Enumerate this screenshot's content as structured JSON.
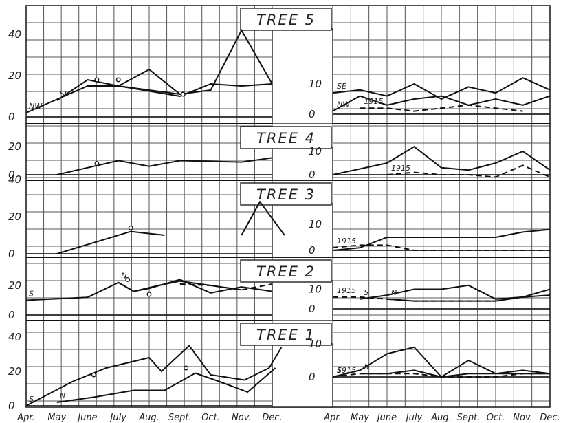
{
  "chart_data": {
    "type": "line",
    "x_labels": [
      "Apr.",
      "May",
      "June",
      "July",
      "Aug.",
      "Sept.",
      "Oct.",
      "Nov.",
      "Dec.",
      "Apr.",
      "May",
      "June",
      "July",
      "Aug.",
      "Sept.",
      "Oct.",
      "Nov.",
      "Dec."
    ],
    "panels": [
      {
        "title": "TREE 5",
        "left_yticks": [
          "40",
          "20",
          "0"
        ],
        "right_yticks": [
          "10",
          "0"
        ],
        "left_series": [
          {
            "name": "SE",
            "style": "solid",
            "points": [
              [
                1,
                8
              ],
              [
                2,
                18
              ],
              [
                3,
                15
              ],
              [
                5,
                11
              ],
              [
                6,
                13
              ],
              [
                7,
                42
              ],
              [
                8,
                16
              ]
            ]
          },
          {
            "name": "NW",
            "style": "solid",
            "points": [
              [
                0,
                2
              ],
              [
                2,
                15
              ],
              [
                3,
                15
              ],
              [
                5,
                10
              ],
              [
                6,
                16
              ],
              [
                7,
                15
              ],
              [
                8,
                16
              ]
            ]
          },
          {
            "name": "",
            "style": "solid",
            "points": [
              [
                3,
                15
              ],
              [
                4,
                23
              ],
              [
                5,
                11
              ]
            ]
          }
        ],
        "left_markers": [
          [
            2.3,
            18
          ],
          [
            3,
            18
          ],
          [
            5.1,
            11
          ]
        ],
        "right_series": [
          {
            "name": "SE",
            "style": "solid",
            "points": [
              [
                0,
                7
              ],
              [
                1,
                8
              ],
              [
                2,
                6
              ],
              [
                3,
                10
              ],
              [
                4,
                5
              ],
              [
                5,
                9
              ],
              [
                6,
                7
              ],
              [
                7,
                12
              ],
              [
                8,
                8
              ]
            ]
          },
          {
            "name": "NW",
            "style": "solid",
            "points": [
              [
                0,
                1
              ],
              [
                1,
                6
              ],
              [
                2,
                3
              ],
              [
                3,
                5
              ],
              [
                4,
                6
              ],
              [
                5,
                3
              ],
              [
                6,
                5
              ],
              [
                7,
                3
              ],
              [
                8,
                6
              ]
            ]
          },
          {
            "name": "1915",
            "style": "dashed",
            "points": [
              [
                1,
                2
              ],
              [
                2,
                2
              ],
              [
                3,
                1
              ],
              [
                4,
                2
              ],
              [
                5,
                3
              ],
              [
                6,
                2
              ],
              [
                7,
                1
              ]
            ]
          }
        ]
      },
      {
        "title": "TREE 4",
        "left_yticks": [
          "20",
          "0"
        ],
        "right_yticks": [
          "10",
          "0"
        ],
        "left_series": [
          {
            "name": "",
            "style": "solid",
            "points": [
              [
                1,
                0
              ],
              [
                3,
                10
              ],
              [
                4,
                6
              ],
              [
                5,
                10
              ],
              [
                7,
                9
              ],
              [
                8,
                12
              ]
            ]
          }
        ],
        "left_markers": [
          [
            2.3,
            8
          ]
        ],
        "right_series": [
          {
            "name": "",
            "style": "solid",
            "points": [
              [
                0,
                0
              ],
              [
                2,
                5
              ],
              [
                3,
                12
              ],
              [
                4,
                3
              ],
              [
                5,
                2
              ],
              [
                6,
                5
              ],
              [
                7,
                10
              ],
              [
                8,
                2
              ]
            ]
          },
          {
            "name": "1915",
            "style": "dashed",
            "points": [
              [
                2,
                0
              ],
              [
                3,
                1
              ],
              [
                4,
                0
              ],
              [
                5,
                0
              ],
              [
                6,
                -1
              ],
              [
                7,
                4
              ],
              [
                8,
                -1
              ]
            ]
          }
        ]
      },
      {
        "title": "TREE 3",
        "left_yticks": [
          "40",
          "20",
          "0"
        ],
        "right_yticks": [
          "10",
          "0"
        ],
        "left_series": [
          {
            "name": "",
            "style": "solid",
            "points": [
              [
                1,
                0
              ],
              [
                2.8,
                9
              ],
              [
                3.4,
                12
              ],
              [
                4.5,
                10
              ]
            ]
          },
          {
            "name": "",
            "style": "solid",
            "points": [
              [
                7,
                10
              ],
              [
                7.6,
                28
              ],
              [
                8.4,
                10
              ]
            ]
          }
        ],
        "left_markers": [
          [
            3.4,
            14
          ]
        ],
        "right_series": [
          {
            "name": "",
            "style": "solid",
            "points": [
              [
                0,
                0
              ],
              [
                1,
                1
              ],
              [
                2,
                5
              ],
              [
                3,
                5
              ],
              [
                4,
                5
              ],
              [
                5,
                5
              ],
              [
                6,
                5
              ],
              [
                7,
                7
              ],
              [
                8,
                8
              ]
            ]
          },
          {
            "name": "1915",
            "style": "dashed",
            "points": [
              [
                0,
                1
              ],
              [
                1,
                2
              ],
              [
                2,
                2
              ],
              [
                3,
                0
              ],
              [
                4,
                0
              ],
              [
                5,
                0
              ],
              [
                6,
                0
              ],
              [
                7,
                0
              ],
              [
                8,
                0
              ]
            ]
          }
        ]
      },
      {
        "title": "TREE 2",
        "left_yticks": [
          "20",
          "0"
        ],
        "right_yticks": [
          "10",
          "0"
        ],
        "left_series": [
          {
            "name": "S",
            "style": "solid",
            "points": [
              [
                0,
                10
              ],
              [
                2,
                12
              ],
              [
                3,
                22
              ],
              [
                3.5,
                16
              ],
              [
                4,
                18
              ],
              [
                5,
                24
              ],
              [
                6,
                15
              ],
              [
                7,
                19
              ],
              [
                8,
                16
              ]
            ]
          },
          {
            "name": "N",
            "style": "solid",
            "points": [
              [
                3,
                22
              ],
              [
                3.5,
                16
              ],
              [
                4.3,
                20
              ],
              [
                5,
                23
              ],
              [
                7,
                17
              ]
            ]
          },
          {
            "name": "",
            "style": "dashed",
            "points": [
              [
                5,
                21
              ],
              [
                6,
                20
              ],
              [
                7,
                17
              ],
              [
                8,
                21
              ]
            ]
          }
        ],
        "left_markers": [
          [
            3.3,
            24
          ],
          [
            4,
            14
          ]
        ],
        "right_series": [
          {
            "name": "S",
            "style": "solid",
            "points": [
              [
                1,
                5
              ],
              [
                2,
                7
              ],
              [
                3,
                10
              ],
              [
                4,
                10
              ],
              [
                5,
                12
              ],
              [
                6,
                5
              ],
              [
                7,
                6
              ],
              [
                8,
                7
              ]
            ]
          },
          {
            "name": "N",
            "style": "solid",
            "points": [
              [
                2,
                5
              ],
              [
                3,
                4
              ],
              [
                4,
                4
              ],
              [
                5,
                4
              ],
              [
                6,
                4
              ],
              [
                7,
                6
              ],
              [
                8,
                10
              ]
            ]
          },
          {
            "name": "1915",
            "style": "dashed",
            "points": [
              [
                0,
                6
              ],
              [
                1,
                6
              ],
              [
                2,
                5
              ],
              [
                3,
                4
              ],
              [
                4,
                4
              ],
              [
                5,
                4
              ],
              [
                6,
                4
              ]
            ]
          }
        ]
      },
      {
        "title": "TREE 1",
        "left_yticks": [
          "40",
          "20",
          "0"
        ],
        "right_yticks": [
          "10",
          "0"
        ],
        "left_series": [
          {
            "name": "S",
            "style": "solid",
            "points": [
              [
                0,
                0
              ],
              [
                1.5,
                14
              ],
              [
                2.6,
                22
              ],
              [
                4,
                28
              ],
              [
                4.4,
                20
              ],
              [
                5.3,
                35
              ],
              [
                6,
                18
              ],
              [
                7.1,
                15
              ],
              [
                7.9,
                22
              ],
              [
                8.3,
                34
              ]
            ]
          },
          {
            "name": "N",
            "style": "solid",
            "points": [
              [
                1,
                2
              ],
              [
                2.2,
                5
              ],
              [
                3.5,
                9
              ],
              [
                4.5,
                9
              ],
              [
                5.5,
                19
              ],
              [
                6.3,
                14
              ],
              [
                7.2,
                8
              ],
              [
                8.1,
                22
              ]
            ]
          }
        ],
        "left_markers": [
          [
            2.2,
            18
          ],
          [
            5.2,
            22
          ]
        ],
        "right_series": [
          {
            "name": "S",
            "style": "solid",
            "points": [
              [
                0,
                0
              ],
              [
                1,
                2
              ],
              [
                2,
                7
              ],
              [
                3,
                9
              ],
              [
                4,
                0
              ],
              [
                5,
                5
              ],
              [
                6,
                1
              ],
              [
                7,
                2
              ],
              [
                8,
                1
              ]
            ]
          },
          {
            "name": "N",
            "style": "solid",
            "points": [
              [
                1,
                1
              ],
              [
                2,
                1
              ],
              [
                3,
                2
              ],
              [
                4,
                0
              ],
              [
                5,
                1
              ],
              [
                6,
                1
              ],
              [
                7,
                1
              ],
              [
                8,
                1
              ]
            ]
          },
          {
            "name": "1915",
            "style": "dashed",
            "points": [
              [
                0,
                0
              ],
              [
                1,
                1
              ],
              [
                2,
                1
              ],
              [
                3,
                1
              ],
              [
                4,
                0
              ],
              [
                5,
                0
              ],
              [
                6,
                0
              ],
              [
                7,
                1
              ],
              [
                8,
                1
              ]
            ]
          }
        ]
      }
    ]
  }
}
